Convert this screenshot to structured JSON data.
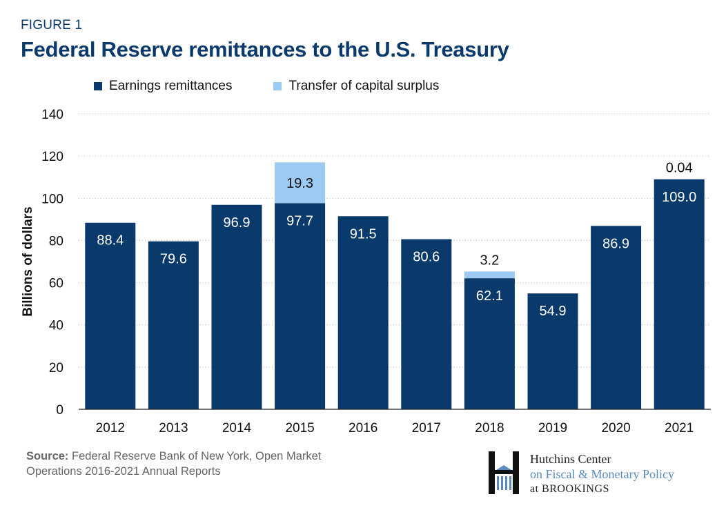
{
  "figure_label": "FIGURE 1",
  "title": "Federal Reserve remittances to the U.S. Treasury",
  "source_prefix": "Source:",
  "source_text": "Federal Reserve Bank of New York, Open Market Operations 2016-2021 Annual Reports",
  "logo": {
    "line1": "Hutchins Center",
    "line2": "on Fiscal & Monetary Policy",
    "line3": "at BROOKINGS"
  },
  "colors": {
    "earnings": "#0a3a6b",
    "surplus": "#9ccaf2",
    "title": "#0a3a6b"
  },
  "chart_data": {
    "type": "bar",
    "stacked": true,
    "categories": [
      "2012",
      "2013",
      "2014",
      "2015",
      "2016",
      "2017",
      "2018",
      "2019",
      "2020",
      "2021"
    ],
    "series": [
      {
        "name": "Earnings remittances",
        "values": [
          88.4,
          79.6,
          96.9,
          97.7,
          91.5,
          80.6,
          62.1,
          54.9,
          86.9,
          109.0
        ],
        "labels": [
          "88.4",
          "79.6",
          "96.9",
          "97.7",
          "91.5",
          "80.6",
          "62.1",
          "54.9",
          "86.9",
          "109.0"
        ]
      },
      {
        "name": "Transfer of capital surplus",
        "values": [
          0,
          0,
          0,
          19.3,
          0,
          0,
          3.2,
          0,
          0,
          0.04
        ],
        "labels": [
          "",
          "",
          "",
          "19.3",
          "",
          "",
          "3.2",
          "",
          "",
          "0.04"
        ]
      }
    ],
    "ylabel": "Billions of dollars",
    "xlabel": "",
    "ylim": [
      0,
      140
    ],
    "yticks": [
      0,
      20,
      40,
      60,
      80,
      100,
      120,
      140
    ],
    "grid": true,
    "legend_position": "top-left"
  }
}
